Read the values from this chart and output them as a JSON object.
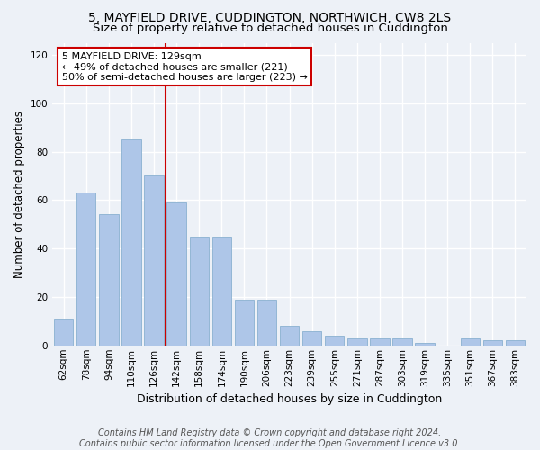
{
  "title": "5, MAYFIELD DRIVE, CUDDINGTON, NORTHWICH, CW8 2LS",
  "subtitle": "Size of property relative to detached houses in Cuddington",
  "xlabel": "Distribution of detached houses by size in Cuddington",
  "ylabel": "Number of detached properties",
  "categories": [
    "62sqm",
    "78sqm",
    "94sqm",
    "110sqm",
    "126sqm",
    "142sqm",
    "158sqm",
    "174sqm",
    "190sqm",
    "206sqm",
    "223sqm",
    "239sqm",
    "255sqm",
    "271sqm",
    "287sqm",
    "303sqm",
    "319sqm",
    "335sqm",
    "351sqm",
    "367sqm",
    "383sqm"
  ],
  "values": [
    11,
    63,
    54,
    85,
    70,
    59,
    45,
    45,
    19,
    19,
    8,
    6,
    4,
    3,
    3,
    3,
    1,
    0,
    3,
    2,
    2
  ],
  "bar_color": "#aec6e8",
  "bar_edge_color": "#8ab0d0",
  "vline_x": 4.5,
  "vline_color": "#cc0000",
  "annotation_text": "5 MAYFIELD DRIVE: 129sqm\n← 49% of detached houses are smaller (221)\n50% of semi-detached houses are larger (223) →",
  "annotation_box_color": "#ffffff",
  "annotation_box_edge_color": "#cc0000",
  "ylim": [
    0,
    125
  ],
  "yticks": [
    0,
    20,
    40,
    60,
    80,
    100,
    120
  ],
  "footer1": "Contains HM Land Registry data © Crown copyright and database right 2024.",
  "footer2": "Contains public sector information licensed under the Open Government Licence v3.0.",
  "bg_color": "#edf1f7",
  "plot_bg_color": "#edf1f7",
  "grid_color": "#ffffff",
  "title_fontsize": 10,
  "subtitle_fontsize": 9.5,
  "xlabel_fontsize": 9,
  "ylabel_fontsize": 8.5,
  "tick_fontsize": 7.5,
  "annotation_fontsize": 8,
  "footer_fontsize": 7
}
